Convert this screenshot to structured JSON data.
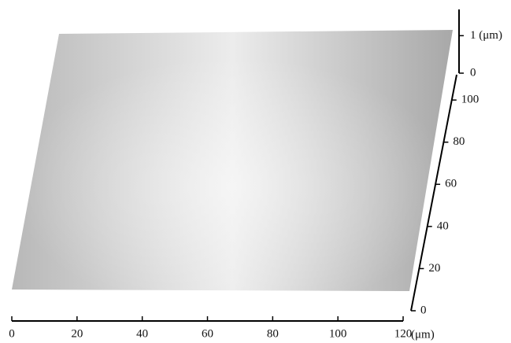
{
  "chart_data": {
    "type": "surface",
    "x_label": "(μm)",
    "xlim": [
      0,
      120
    ],
    "xticks": [
      0,
      20,
      40,
      60,
      80,
      100,
      120
    ],
    "ylim": [
      0,
      112
    ],
    "yticks": [
      0,
      20,
      40,
      60,
      80,
      100
    ],
    "zlim": [
      0,
      1.7
    ],
    "zticks": [
      0,
      {
        "value": 1,
        "label": "1 (μm)"
      }
    ],
    "color": "#c4c4c4"
  }
}
